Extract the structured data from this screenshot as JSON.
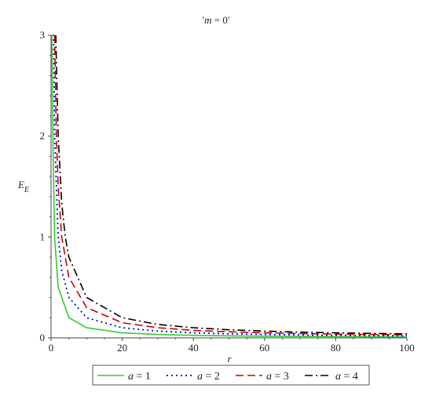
{
  "chart_data": {
    "type": "line",
    "title": "'m = 0'",
    "title_parts": {
      "prefix": "'",
      "var": "m",
      "rest": " = 0'"
    },
    "xlabel": "r",
    "ylabel": "E",
    "ylabel_sub": "E",
    "xlim": [
      0,
      100
    ],
    "ylim": [
      0,
      3
    ],
    "x_ticks": [
      0,
      20,
      40,
      60,
      80,
      100
    ],
    "y_ticks": [
      0,
      1,
      2,
      3
    ],
    "x_tick_labels": [
      "0",
      "20",
      "40",
      "60",
      "80",
      "100"
    ],
    "y_tick_labels": [
      "0",
      "1",
      "2",
      "3"
    ],
    "grid": false,
    "legend_position": "bottom",
    "series": [
      {
        "name": "a = 1",
        "var": "a",
        "rest": " = 1",
        "style": "solid",
        "color": "#33cc33",
        "x": [
          0.1,
          0.2,
          0.5,
          1,
          2,
          5,
          10,
          20,
          30,
          40,
          50,
          60,
          70,
          80,
          90,
          100
        ],
        "values": [
          3.0,
          3.0,
          2.0,
          1.0,
          0.5,
          0.2,
          0.1,
          0.05,
          0.0333,
          0.025,
          0.02,
          0.0167,
          0.0143,
          0.0125,
          0.0111,
          0.01
        ]
      },
      {
        "name": "a = 2",
        "var": "a",
        "rest": " = 2",
        "style": "dotted",
        "color": "#0000ee",
        "x": [
          0.5,
          0.7,
          1,
          2,
          3,
          5,
          10,
          20,
          30,
          40,
          50,
          60,
          70,
          80,
          90,
          100
        ],
        "values": [
          3.0,
          3.0,
          2.0,
          1.0,
          0.667,
          0.4,
          0.2,
          0.1,
          0.0667,
          0.05,
          0.04,
          0.0333,
          0.0286,
          0.025,
          0.0222,
          0.02
        ]
      },
      {
        "name": "a = 3",
        "var": "a",
        "rest": " = 3",
        "style": "dashed",
        "color": "#cc0000",
        "x": [
          1,
          1.5,
          2,
          3,
          5,
          10,
          20,
          30,
          40,
          50,
          60,
          70,
          80,
          90,
          100
        ],
        "values": [
          3.0,
          2.0,
          1.5,
          1.0,
          0.6,
          0.3,
          0.15,
          0.1,
          0.075,
          0.06,
          0.05,
          0.0429,
          0.0375,
          0.0333,
          0.03
        ]
      },
      {
        "name": "a = 4",
        "var": "a",
        "rest": " = 4",
        "style": "dashdot",
        "color": "#000000",
        "x": [
          1.33,
          2,
          3,
          4,
          5,
          10,
          20,
          30,
          40,
          50,
          60,
          70,
          80,
          90,
          100
        ],
        "values": [
          3.0,
          2.0,
          1.333,
          1.0,
          0.8,
          0.4,
          0.2,
          0.133,
          0.1,
          0.08,
          0.0667,
          0.0571,
          0.05,
          0.0444,
          0.04
        ]
      }
    ]
  }
}
